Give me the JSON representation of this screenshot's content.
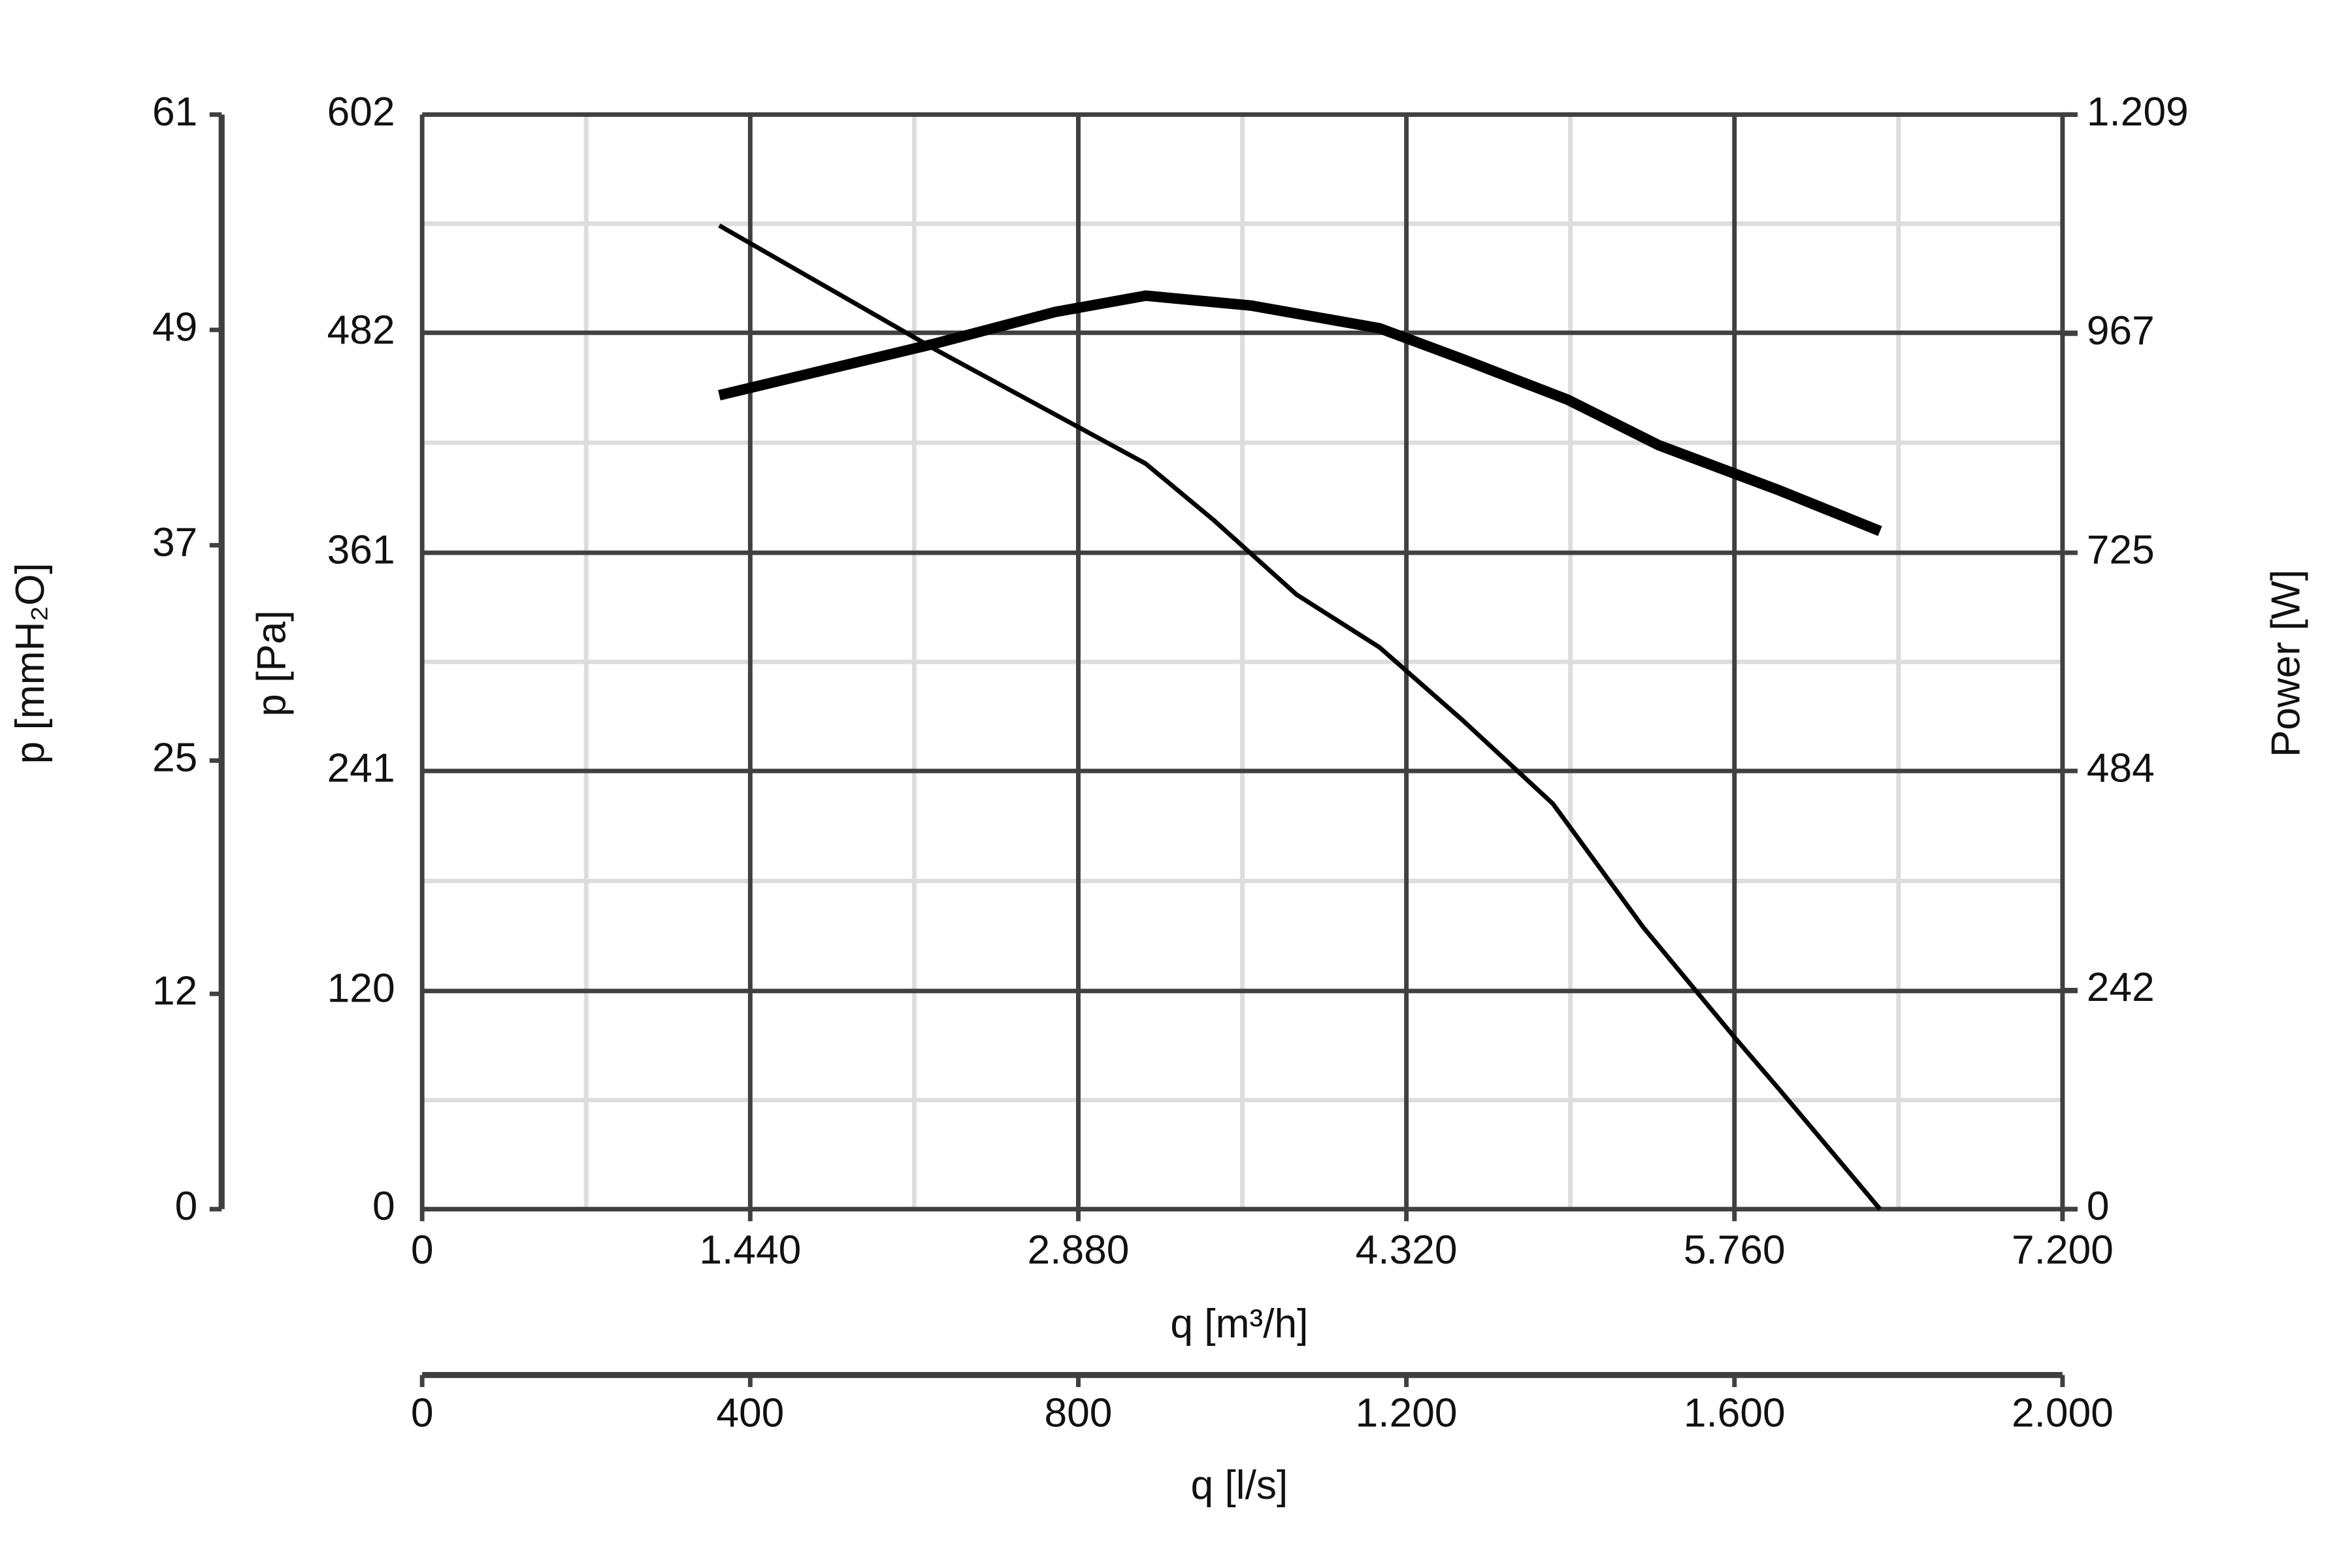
{
  "chart_data": {
    "type": "line",
    "x_label": "q [m³/h]",
    "x2_label": "q [l/s]",
    "y_label": "p [Pa]",
    "y3_label": "p [mmH₂O]",
    "y2_label": "Power [W]",
    "xlim": [
      0,
      7200
    ],
    "xticks": [
      0,
      {
        "value": 1440,
        "label": "1.440"
      },
      {
        "value": 2880,
        "label": "2.880"
      },
      {
        "value": 4320,
        "label": "4.320"
      },
      {
        "value": 5760,
        "label": "5.760"
      },
      {
        "value": 7200,
        "label": "7.200"
      }
    ],
    "x2lim": [
      0,
      2000
    ],
    "x2ticks": [
      0,
      400,
      800,
      {
        "value": 1200,
        "label": "1.200"
      },
      {
        "value": 1600,
        "label": "1.600"
      },
      {
        "value": 2000,
        "label": "2.000"
      }
    ],
    "ylim": [
      0,
      602
    ],
    "yticks": [
      0,
      120,
      241,
      361,
      482,
      602
    ],
    "y3lim": [
      0,
      61
    ],
    "y3ticks": [
      0,
      12,
      25,
      37,
      49,
      61
    ],
    "y2lim": [
      0,
      1209
    ],
    "y2ticks": [
      0,
      242,
      484,
      725,
      967,
      {
        "value": 1209,
        "label": "1.209"
      }
    ],
    "grid": true,
    "minor_grid": true,
    "series": [
      {
        "color": "#000000",
        "axis": "y",
        "x": [
          1304,
          2250,
          3176,
          3474,
          3838,
          4202,
          4566,
          4963,
          5360,
          5757,
          5956,
          6399
        ],
        "values": [
          541,
          473,
          410,
          379,
          338,
          309,
          269,
          223,
          155,
          95,
          66,
          0
        ]
      },
      {
        "color": "#000000",
        "axis": "y2",
        "x": [
          1304,
          2250,
          2779,
          3176,
          3640,
          4202,
          4566,
          5029,
          5426,
          5956,
          6399
        ],
        "values": [
          899,
          956,
          991,
          1009,
          998,
          973,
          939,
          894,
          844,
          794,
          749
        ]
      }
    ]
  }
}
